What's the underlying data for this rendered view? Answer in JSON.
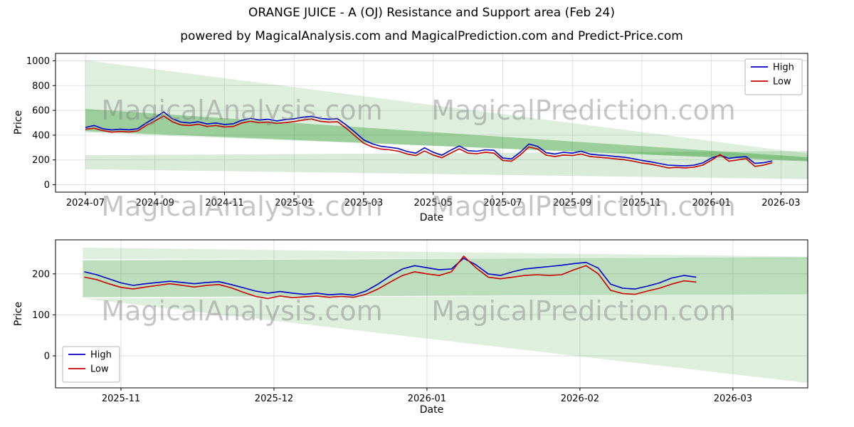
{
  "page": {
    "title": "ORANGE JUICE - A (OJ) Resistance and Support area (Feb 24)",
    "subtitle": "powered by MagicalAnalysis.com and MagicalPrediction.com and Predict-Price.com"
  },
  "watermarks": {
    "analysis": "MagicalAnalysis.com",
    "prediction": "MagicalPrediction.com"
  },
  "colors": {
    "high_line": "#0000cc",
    "low_line": "#cc0000",
    "band_green": "#008000",
    "grid": "#d9d9d9",
    "watermark_gray": "#808080"
  },
  "chart_data": [
    {
      "type": "line",
      "name": "price-history-main",
      "title": "",
      "xlabel": "Date",
      "ylabel": "Price",
      "grid": true,
      "xlim": [
        -0.86,
        20.77
      ],
      "ylim": [
        -60,
        1060
      ],
      "x_unit": "months since 2024-07",
      "x_tick_positions": [
        0,
        2,
        4,
        6,
        8,
        10,
        12,
        14,
        16,
        18,
        20
      ],
      "x_tick_labels": [
        "2024-07",
        "2024-09",
        "2024-11",
        "2025-01",
        "2025-03",
        "2025-05",
        "2025-07",
        "2025-09",
        "2025-11",
        "2026-01",
        "2026-03"
      ],
      "y_ticks": [
        0,
        200,
        400,
        600,
        800,
        1000
      ],
      "legend": {
        "position": "top-right",
        "entries": [
          "High",
          "Low"
        ]
      },
      "series": [
        {
          "name": "High",
          "color": "#0000cc",
          "x_start": 0,
          "x_step": 0.25,
          "values": [
            462,
            478,
            452,
            442,
            448,
            443,
            452,
            498,
            540,
            588,
            532,
            505,
            498,
            508,
            490,
            498,
            486,
            492,
            520,
            535,
            522,
            528,
            515,
            525,
            532,
            545,
            552,
            535,
            528,
            532,
            482,
            425,
            362,
            330,
            310,
            302,
            292,
            268,
            255,
            298,
            262,
            238,
            278,
            312,
            275,
            270,
            282,
            278,
            215,
            208,
            262,
            328,
            310,
            258,
            248,
            262,
            255,
            270,
            248,
            240,
            235,
            228,
            222,
            210,
            196,
            185,
            172,
            158,
            155,
            152,
            158,
            176,
            215,
            238,
            212,
            222,
            226,
            172,
            178,
            192
          ]
        },
        {
          "name": "Low",
          "color": "#cc0000",
          "x_start": 0,
          "x_step": 0.25,
          "values": [
            448,
            456,
            436,
            424,
            430,
            426,
            434,
            478,
            515,
            555,
            508,
            482,
            478,
            488,
            470,
            478,
            466,
            470,
            498,
            512,
            500,
            506,
            494,
            502,
            510,
            522,
            530,
            512,
            505,
            508,
            455,
            395,
            335,
            305,
            288,
            282,
            270,
            248,
            235,
            272,
            240,
            218,
            255,
            290,
            255,
            250,
            262,
            255,
            196,
            190,
            240,
            305,
            288,
            238,
            228,
            240,
            235,
            248,
            228,
            222,
            216,
            208,
            202,
            190,
            175,
            166,
            152,
            136,
            140,
            136,
            142,
            158,
            198,
            244,
            190,
            200,
            210,
            148,
            158,
            178
          ]
        }
      ],
      "bands": [
        {
          "name": "resistance-wedge-light",
          "opacity": 0.13,
          "points": [
            [
              0,
              420
            ],
            [
              0,
              1005
            ],
            [
              20.77,
              252
            ],
            [
              20.77,
              198
            ]
          ]
        },
        {
          "name": "resistance-wedge-dark",
          "opacity": 0.3,
          "points": [
            [
              0,
              432
            ],
            [
              0,
              612
            ],
            [
              20.77,
              222
            ],
            [
              20.77,
              188
            ]
          ]
        },
        {
          "name": "support-band",
          "opacity": 0.15,
          "points": [
            [
              0,
              125
            ],
            [
              0,
              238
            ],
            [
              20.77,
              272
            ],
            [
              20.77,
              45
            ]
          ]
        }
      ]
    },
    {
      "type": "line",
      "name": "price-zoom-recent",
      "title": "",
      "xlabel": "Date",
      "ylabel": "Price",
      "grid": true,
      "xlim": [
        -0.428,
        4.489
      ],
      "ylim": [
        -78,
        283
      ],
      "x_unit": "months since 2025-11",
      "x_tick_positions": [
        0,
        1,
        2,
        3,
        4
      ],
      "x_tick_labels": [
        "2025-11",
        "2025-12",
        "2026-01",
        "2026-02",
        "2026-03"
      ],
      "y_ticks": [
        0,
        100,
        200
      ],
      "legend": {
        "position": "bottom-left",
        "entries": [
          "High",
          "Low"
        ]
      },
      "series": [
        {
          "name": "High",
          "color": "#0000cc",
          "x_start": -0.24,
          "x_step": 0.08,
          "values": [
            205,
            198,
            188,
            178,
            172,
            176,
            179,
            182,
            179,
            176,
            179,
            181,
            174,
            166,
            158,
            153,
            157,
            153,
            150,
            153,
            149,
            151,
            148,
            158,
            175,
            195,
            212,
            220,
            215,
            210,
            212,
            238,
            222,
            200,
            196,
            205,
            212,
            215,
            218,
            221,
            225,
            228,
            214,
            175,
            165,
            163,
            170,
            178,
            190,
            196,
            192
          ]
        },
        {
          "name": "Low",
          "color": "#cc0000",
          "x_start": -0.24,
          "x_step": 0.08,
          "values": [
            192,
            186,
            176,
            167,
            163,
            168,
            172,
            176,
            172,
            168,
            172,
            174,
            166,
            155,
            145,
            140,
            146,
            142,
            144,
            146,
            143,
            145,
            143,
            150,
            163,
            180,
            196,
            205,
            200,
            196,
            205,
            243,
            215,
            192,
            188,
            192,
            196,
            198,
            196,
            198,
            210,
            220,
            200,
            160,
            152,
            150,
            158,
            165,
            175,
            183,
            180
          ]
        }
      ],
      "bands": [
        {
          "name": "upper-wedge-light",
          "opacity": 0.13,
          "points": [
            [
              -0.25,
              236
            ],
            [
              -0.25,
              264
            ],
            [
              4.489,
              242
            ],
            [
              4.489,
              238
            ]
          ]
        },
        {
          "name": "mid-band-dark",
          "opacity": 0.26,
          "points": [
            [
              -0.25,
              143
            ],
            [
              -0.25,
              233
            ],
            [
              4.489,
              240
            ],
            [
              4.489,
              150
            ]
          ]
        },
        {
          "name": "lower-wedge-light",
          "opacity": 0.13,
          "points": [
            [
              -0.25,
              140
            ],
            [
              4.489,
              150
            ],
            [
              4.489,
              -66
            ]
          ]
        }
      ]
    }
  ]
}
